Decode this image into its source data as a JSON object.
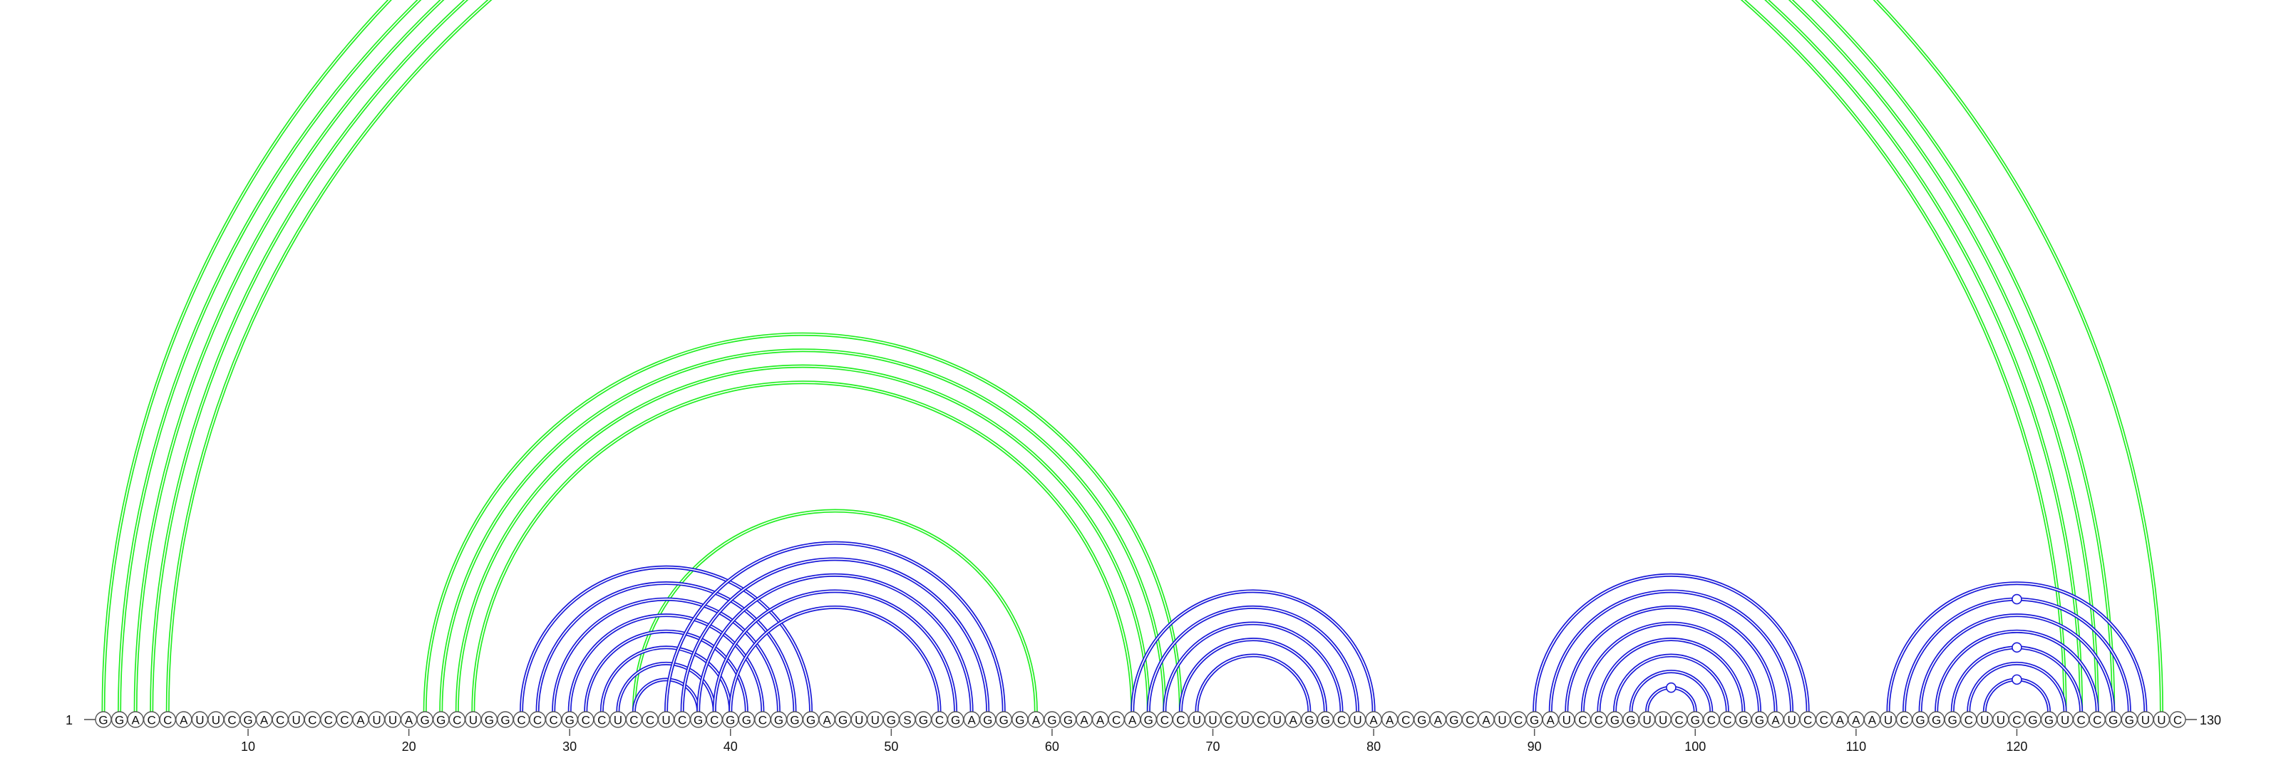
{
  "sequence": "GGACCAUUCGACUCCCAUUAGGCUGGCCCGCCUCCUCGCGGCGGGAGUUGSGCGAGGGAGGAACAGCCUUCUCUAGGCUAACGAGCAUCGAUCCGGUUCGCCGGAUCCAAAUCGGGCUUCGGUCCGGUUC",
  "start_label": "1",
  "end_label": "130",
  "ticks": [
    10,
    20,
    30,
    40,
    50,
    60,
    70,
    80,
    90,
    100,
    110,
    120
  ],
  "colors": {
    "green": "#22ee22",
    "blue": "#1a1ad8"
  },
  "arc_groups": [
    {
      "color": "green",
      "pairs": [
        [
          1,
          129
        ],
        [
          2,
          126
        ],
        [
          3,
          125
        ],
        [
          4,
          124
        ],
        [
          5,
          123
        ]
      ]
    },
    {
      "color": "green",
      "pairs": [
        [
          21,
          68
        ],
        [
          22,
          67
        ],
        [
          23,
          66
        ],
        [
          24,
          65
        ]
      ]
    },
    {
      "color": "green",
      "pairs": [
        [
          34,
          59
        ]
      ]
    },
    {
      "color": "blue",
      "pairs": [
        [
          27,
          45
        ],
        [
          28,
          44
        ],
        [
          29,
          43
        ],
        [
          30,
          42
        ],
        [
          31,
          41
        ],
        [
          32,
          40
        ],
        [
          33,
          39
        ],
        [
          34,
          38
        ]
      ]
    },
    {
      "color": "blue",
      "pairs": [
        [
          36,
          57
        ],
        [
          37,
          56
        ],
        [
          38,
          55
        ],
        [
          39,
          54
        ],
        [
          40,
          53
        ]
      ]
    },
    {
      "color": "blue",
      "pairs": [
        [
          65,
          80
        ],
        [
          66,
          79
        ],
        [
          67,
          78
        ],
        [
          68,
          77
        ],
        [
          69,
          76
        ]
      ]
    },
    {
      "color": "blue",
      "pairs": [
        [
          90,
          107
        ],
        [
          91,
          106
        ],
        [
          92,
          105
        ],
        [
          93,
          104
        ],
        [
          94,
          103
        ],
        [
          95,
          102
        ],
        [
          96,
          101
        ],
        [
          97,
          100
        ]
      ]
    },
    {
      "color": "blue",
      "pairs": [
        [
          112,
          128
        ],
        [
          113,
          127
        ],
        [
          114,
          126
        ],
        [
          115,
          125
        ],
        [
          116,
          124
        ],
        [
          117,
          123
        ],
        [
          118,
          122
        ]
      ]
    }
  ],
  "markers": [
    {
      "color": "green",
      "pair": [
        1,
        129
      ]
    },
    {
      "color": "blue",
      "pair": [
        97,
        100
      ]
    },
    {
      "color": "blue",
      "pair": [
        113,
        127
      ]
    },
    {
      "color": "blue",
      "pair": [
        116,
        124
      ]
    },
    {
      "color": "blue",
      "pair": [
        118,
        122
      ]
    }
  ]
}
